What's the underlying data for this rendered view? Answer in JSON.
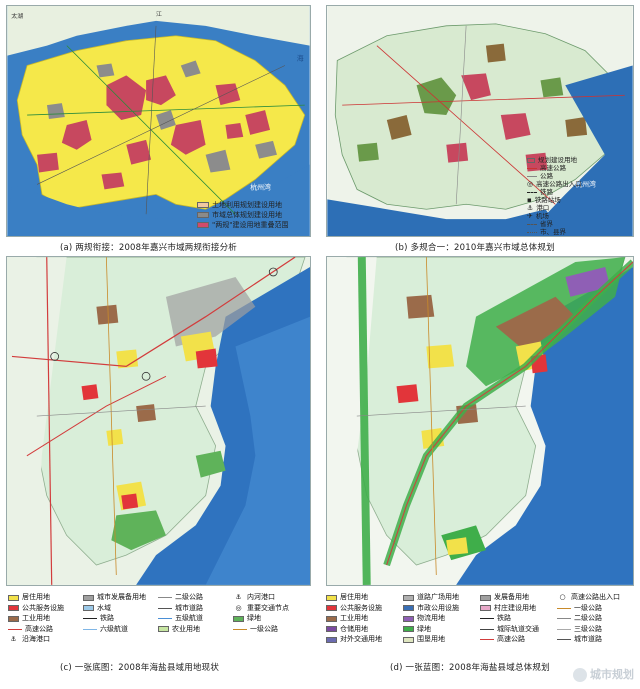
{
  "panel_a": {
    "caption": "(a) 两规衔接：2008年嘉兴市域两规衔接分析",
    "labels": {
      "north_river": "江",
      "north_taihu": "太湖",
      "bay": "杭州湾",
      "sea": "海"
    },
    "legend": [
      {
        "label": "土地利用规划建设用地",
        "color": "#f0c8a0"
      },
      {
        "label": "市域总体规划建设用地",
        "color": "#8a8a8a"
      },
      {
        "label": "\"两规\"建设用地重叠范围",
        "color": "#d24b6a"
      }
    ]
  },
  "panel_b": {
    "caption": "(b) 多规合一：2010年嘉兴市域总体规划",
    "labels": {
      "bay": "杭州湾"
    },
    "legend": [
      "规划建设用地",
      "高速公路",
      "公路",
      "高速公路出入口",
      "铁路",
      "铁路站场",
      "港口",
      "机场",
      "省界",
      "市、县界"
    ]
  },
  "panel_c": {
    "caption": "(c) 一张底图：2008年海盐县域用地现状",
    "legend": [
      {
        "label": "居住用地",
        "color": "#f2e14a",
        "kind": "swatch"
      },
      {
        "label": "城市发展备用地",
        "color": "#a0a0a0",
        "kind": "swatch"
      },
      {
        "label": "二级公路",
        "kind": "line",
        "color": "#888888"
      },
      {
        "label": "内河港口",
        "kind": "symbol",
        "glyph": "⚓"
      },
      {
        "label": "公共服务设施",
        "color": "#e2353a",
        "kind": "swatch"
      },
      {
        "label": "水域",
        "color": "#9cc9e8",
        "kind": "swatch"
      },
      {
        "label": "城市道路",
        "kind": "line",
        "color": "#555555"
      },
      {
        "label": "重要交通节点",
        "kind": "symbol",
        "glyph": "◎"
      },
      {
        "label": "工业用地",
        "color": "#9b6b4a",
        "kind": "swatch"
      },
      {
        "label": "铁路",
        "kind": "line",
        "color": "#222222"
      },
      {
        "label": "五级航道",
        "kind": "line",
        "color": "#4a8fd6"
      },
      {
        "label": "绿地",
        "color": "#5fb35a",
        "kind": "swatch"
      },
      {
        "label": "高速公路",
        "kind": "line",
        "color": "#d23c3c"
      },
      {
        "label": "六级航道",
        "kind": "line",
        "color": "#7fb6e6"
      },
      {
        "label": "农业用地",
        "color": "#c7e6a2",
        "kind": "swatch"
      },
      {
        "label": "一级公路",
        "kind": "line",
        "color": "#c88a2a"
      },
      {
        "label": "沿海港口",
        "kind": "symbol",
        "glyph": "⚓"
      }
    ]
  },
  "panel_d": {
    "caption": "(d) 一张蓝图：2008年海盐县域总体规划",
    "legend": [
      {
        "label": "居住用地",
        "color": "#f2e14a",
        "kind": "swatch"
      },
      {
        "label": "道路广场用地",
        "color": "#b0b0b0",
        "kind": "swatch"
      },
      {
        "label": "发展备用地",
        "color": "#a0a0a0",
        "kind": "swatch"
      },
      {
        "label": "高速公路出入口",
        "kind": "symbol",
        "glyph": "○"
      },
      {
        "label": "公共服务设施",
        "color": "#e2353a",
        "kind": "swatch"
      },
      {
        "label": "市政公用设施",
        "color": "#3a6fb5",
        "kind": "swatch"
      },
      {
        "label": "村庄建设用地",
        "color": "#e8a9c9",
        "kind": "swatch"
      },
      {
        "label": "一级公路",
        "kind": "line",
        "color": "#c88a2a"
      },
      {
        "label": "工业用地",
        "color": "#9b6b4a",
        "kind": "swatch"
      },
      {
        "label": "物流用地",
        "color": "#8f5fb5",
        "kind": "swatch"
      },
      {
        "label": "铁路",
        "kind": "line",
        "color": "#222222"
      },
      {
        "label": "二级公路",
        "kind": "line",
        "color": "#888888"
      },
      {
        "label": "仓储用地",
        "color": "#7b4aa0",
        "kind": "swatch"
      },
      {
        "label": "绿地",
        "color": "#3fae4a",
        "kind": "swatch"
      },
      {
        "label": "城际轨道交通",
        "kind": "line",
        "color": "#444444"
      },
      {
        "label": "三级公路",
        "kind": "line",
        "color": "#aaaaaa"
      },
      {
        "label": "对外交通用地",
        "color": "#6b6bb0",
        "kind": "swatch"
      },
      {
        "label": "围垦用地",
        "color": "#dfe6c0",
        "kind": "swatch"
      },
      {
        "label": "高速公路",
        "kind": "line",
        "color": "#d23c3c"
      },
      {
        "label": "城市道路",
        "kind": "line",
        "color": "#555555"
      }
    ]
  },
  "watermark": "城市规划",
  "colors": {
    "sea": "#2d6fb6",
    "sea_light": "#5a98d6",
    "land_a": "#f5e84a",
    "land_b": "#d8ead0",
    "land_cd": "#d9eed9",
    "built": "#c7485f",
    "grey": "#8c8c8c"
  }
}
